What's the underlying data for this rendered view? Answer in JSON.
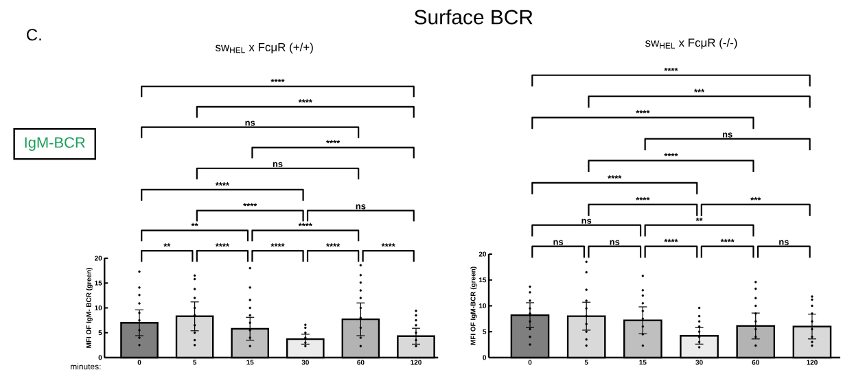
{
  "chart_data": [
    {
      "type": "bar",
      "title": "Surface BCR",
      "subtitle": "sw$_{HEL}$  x FcμR (+/+)",
      "xlabel": "minutes:",
      "ylabel": "MFI OF IgM- BCR (green)",
      "categories": [
        "0",
        "5",
        "15",
        "30",
        "60",
        "120"
      ],
      "ylim": [
        0,
        20
      ],
      "yticks": [
        0,
        5,
        10,
        15,
        20
      ],
      "marker": "circle",
      "series": [
        {
          "type": "bar",
          "values": [
            7.0,
            8.3,
            5.8,
            3.7,
            7.7,
            4.3
          ],
          "errors": [
            2.6,
            2.9,
            2.3,
            1.0,
            3.3,
            1.6
          ],
          "colors": [
            "#7f7f7f",
            "#d9d9d9",
            "#bfbfbf",
            "#ececec",
            "#b3b3b3",
            "#d9d9d9"
          ]
        },
        {
          "type": "scatter",
          "color": "#000000",
          "x": [
            "0",
            "0",
            "0",
            "0",
            "0",
            "0",
            "0",
            "0",
            "0",
            "5",
            "5",
            "5",
            "5",
            "5",
            "5",
            "5",
            "5",
            "5",
            "5",
            "15",
            "15",
            "15",
            "15",
            "15",
            "15",
            "15",
            "15",
            "15",
            "30",
            "30",
            "30",
            "30",
            "30",
            "30",
            "60",
            "60",
            "60",
            "60",
            "60",
            "60",
            "60",
            "60",
            "60",
            "60",
            "120",
            "120",
            "120",
            "120",
            "120",
            "120",
            "120"
          ],
          "values": [
            17.3,
            14.1,
            12.6,
            10.9,
            9.0,
            7.5,
            5.5,
            4.0,
            2.5,
            16.5,
            15.8,
            13.8,
            12.0,
            10.0,
            8.5,
            6.5,
            5.0,
            3.5,
            2.5,
            18.0,
            14.1,
            11.6,
            10.0,
            8.5,
            7.0,
            5.5,
            4.0,
            2.3,
            6.6,
            6.0,
            5.0,
            4.0,
            3.0,
            2.3,
            18.6,
            16.6,
            15.1,
            13.5,
            12.0,
            10.0,
            8.0,
            6.0,
            4.0,
            2.3,
            9.4,
            8.5,
            7.5,
            6.5,
            5.0,
            3.5,
            2.3
          ]
        }
      ],
      "annotations": [
        "C.",
        "IgM-BCR",
        "****",
        "****",
        "ns",
        "****",
        "ns",
        "****",
        "****",
        "ns",
        "**",
        "****",
        "**",
        "****",
        "****",
        "****",
        "****"
      ]
    },
    {
      "type": "bar",
      "subtitle": "sw$_{HEL}$  x FcμR (-/-)",
      "ylabel": "MFI OF IgM-BCR (green)",
      "categories": [
        "0",
        "5",
        "15",
        "30",
        "60",
        "120"
      ],
      "ylim": [
        0,
        20
      ],
      "yticks": [
        0,
        5,
        10,
        15,
        20
      ],
      "marker": "circle",
      "series": [
        {
          "type": "bar",
          "values": [
            8.2,
            8.0,
            7.2,
            4.2,
            6.1,
            6.0
          ],
          "errors": [
            2.4,
            2.7,
            2.6,
            1.6,
            2.5,
            2.4
          ],
          "colors": [
            "#7f7f7f",
            "#d9d9d9",
            "#bfbfbf",
            "#ececec",
            "#b3b3b3",
            "#d9d9d9"
          ]
        },
        {
          "type": "scatter",
          "color": "#000000",
          "x": [
            "0",
            "0",
            "0",
            "0",
            "0",
            "0",
            "0",
            "0",
            "0",
            "5",
            "5",
            "5",
            "5",
            "5",
            "5",
            "5",
            "5",
            "5",
            "5",
            "15",
            "15",
            "15",
            "15",
            "15",
            "15",
            "15",
            "15",
            "15",
            "30",
            "30",
            "30",
            "30",
            "30",
            "30",
            "30",
            "30",
            "60",
            "60",
            "60",
            "60",
            "60",
            "60",
            "60",
            "60",
            "60",
            "120",
            "120",
            "120",
            "120",
            "120",
            "120",
            "120",
            "120",
            "120"
          ],
          "values": [
            13.7,
            12.6,
            11.0,
            9.5,
            8.5,
            7.0,
            5.5,
            4.0,
            2.5,
            18.5,
            16.5,
            13.1,
            11.0,
            9.5,
            8.0,
            6.5,
            5.0,
            3.5,
            2.3,
            15.8,
            13.0,
            12.0,
            10.5,
            9.0,
            7.5,
            6.0,
            4.5,
            2.3,
            9.6,
            8.0,
            7.0,
            6.0,
            5.0,
            4.0,
            3.0,
            2.0,
            14.6,
            13.3,
            11.5,
            10.0,
            8.5,
            7.0,
            5.5,
            4.0,
            2.3,
            11.8,
            11.2,
            10.0,
            8.5,
            7.0,
            5.5,
            4.0,
            3.0,
            2.3
          ]
        }
      ],
      "annotations": [
        "****",
        "***",
        "****",
        "ns",
        "****",
        "****",
        "****",
        "***",
        "ns",
        "**",
        "ns",
        "ns",
        "****",
        "****",
        "ns"
      ]
    }
  ]
}
